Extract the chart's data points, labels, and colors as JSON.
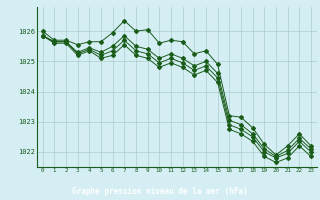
{
  "xlabel": "Graphe pression niveau de la mer (hPa)",
  "x": [
    0,
    1,
    2,
    3,
    4,
    5,
    6,
    7,
    8,
    9,
    10,
    11,
    12,
    13,
    14,
    15,
    16,
    17,
    18,
    19,
    20,
    21,
    22,
    23
  ],
  "series1": [
    1026.0,
    1025.7,
    1025.7,
    1025.55,
    1025.65,
    1025.65,
    1025.95,
    1026.35,
    1026.0,
    1026.05,
    1025.6,
    1025.7,
    1025.65,
    1025.25,
    1025.35,
    1024.9,
    1023.2,
    1023.15,
    1022.8,
    1022.25,
    1021.9,
    1022.2,
    1022.6,
    1022.2
  ],
  "series2": [
    1025.85,
    1025.65,
    1025.65,
    1025.3,
    1025.45,
    1025.3,
    1025.5,
    1025.85,
    1025.5,
    1025.4,
    1025.1,
    1025.25,
    1025.1,
    1024.85,
    1025.0,
    1024.6,
    1023.05,
    1022.9,
    1022.6,
    1022.1,
    1021.85,
    1022.05,
    1022.45,
    1022.1
  ],
  "series3": [
    1025.85,
    1025.65,
    1025.65,
    1025.25,
    1025.4,
    1025.2,
    1025.35,
    1025.7,
    1025.35,
    1025.25,
    1024.95,
    1025.1,
    1024.95,
    1024.7,
    1024.85,
    1024.45,
    1022.9,
    1022.75,
    1022.5,
    1022.0,
    1021.8,
    1021.95,
    1022.35,
    1022.0
  ],
  "series4": [
    1025.85,
    1025.6,
    1025.6,
    1025.2,
    1025.35,
    1025.1,
    1025.2,
    1025.55,
    1025.2,
    1025.1,
    1024.8,
    1024.95,
    1024.8,
    1024.55,
    1024.7,
    1024.3,
    1022.75,
    1022.6,
    1022.35,
    1021.85,
    1021.65,
    1021.8,
    1022.2,
    1021.85
  ],
  "line_color": "#1a5c1a",
  "bg_color": "#d4eef4",
  "grid_color": "#aacccc",
  "label_bg": "#2d6e2d",
  "label_fg": "#ffffff",
  "ylim_min": 1021.5,
  "ylim_max": 1026.8,
  "yticks": [
    1022,
    1023,
    1024,
    1025,
    1026
  ],
  "xtick_labels": [
    "0",
    "1",
    "2",
    "3",
    "4",
    "5",
    "6",
    "7",
    "8",
    "9",
    "10",
    "11",
    "12",
    "13",
    "14",
    "15",
    "16",
    "17",
    "18",
    "19",
    "20",
    "21",
    "22",
    "23"
  ]
}
